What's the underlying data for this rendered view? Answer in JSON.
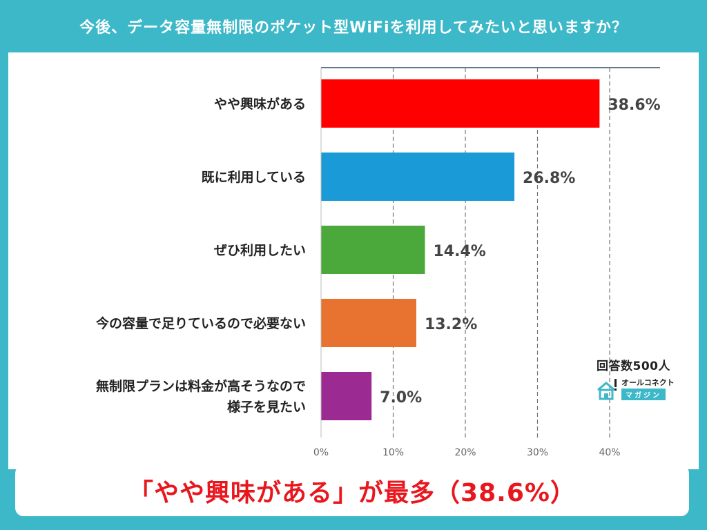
{
  "title": "今後、データ容量無制限のポケット型WiFiを利用してみたいと思いますか？",
  "summary": "「やや興味がある」が最多（38.6%）",
  "badge": {
    "count": "回答数500人",
    "logo_top": "オールコネクト",
    "logo_bottom": "マガジン"
  },
  "colors": {
    "background": "#3cb8c8",
    "summary_text": "#e8171e"
  },
  "chart_data": {
    "type": "bar",
    "orientation": "horizontal",
    "categories": [
      [
        "やや興味がある"
      ],
      [
        "既に利用している"
      ],
      [
        "ぜひ利用したい"
      ],
      [
        "今の容量で足りているので必要ない"
      ],
      [
        "無制限プランは料金が高そうなので",
        "様子を見たい"
      ]
    ],
    "values": [
      38.6,
      26.8,
      14.4,
      13.2,
      7.0
    ],
    "value_labels": [
      "38.6%",
      "26.8%",
      "14.4%",
      "13.2%",
      "7.0%"
    ],
    "bar_colors": [
      "#ff0000",
      "#1a9ad6",
      "#4aa93a",
      "#e8722f",
      "#9c2a93"
    ],
    "xlim": [
      0,
      40
    ],
    "xticks": [
      0,
      10,
      20,
      30,
      40
    ],
    "xtick_labels": [
      "0%",
      "10%",
      "20%",
      "30%",
      "40%"
    ],
    "grid": true
  }
}
